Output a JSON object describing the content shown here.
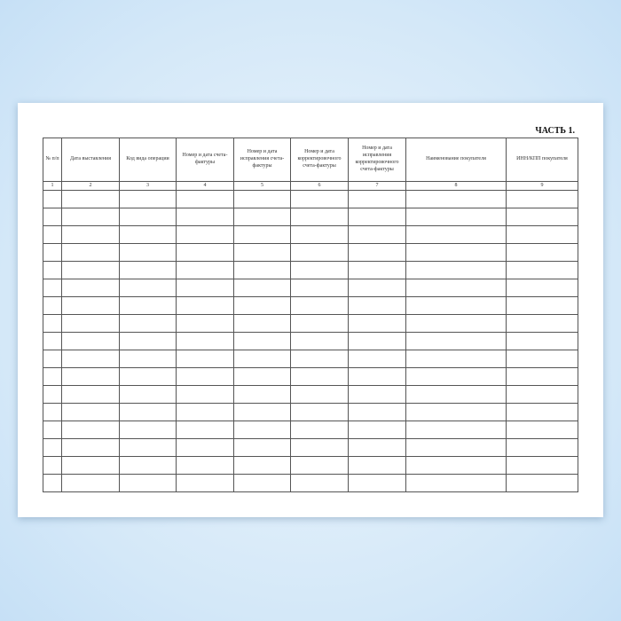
{
  "title": "ЧАСТЬ 1.",
  "columns": [
    {
      "header": "№ п/п",
      "num": "1"
    },
    {
      "header": "Дата выставления",
      "num": "2"
    },
    {
      "header": "Код вида операции",
      "num": "3"
    },
    {
      "header": "Номер и дата счета-фактуры",
      "num": "4"
    },
    {
      "header": "Номер и дата исправления счета-фактуры",
      "num": "5"
    },
    {
      "header": "Номер и дата корректировочного счета-фактуры",
      "num": "6"
    },
    {
      "header": "Номер и дата исправления корректировочного счета-фактуры",
      "num": "7"
    },
    {
      "header": "Наименование покупателя",
      "num": "8"
    },
    {
      "header": "ИНН/КПП покупателя",
      "num": "9"
    }
  ],
  "empty_rows": 17
}
